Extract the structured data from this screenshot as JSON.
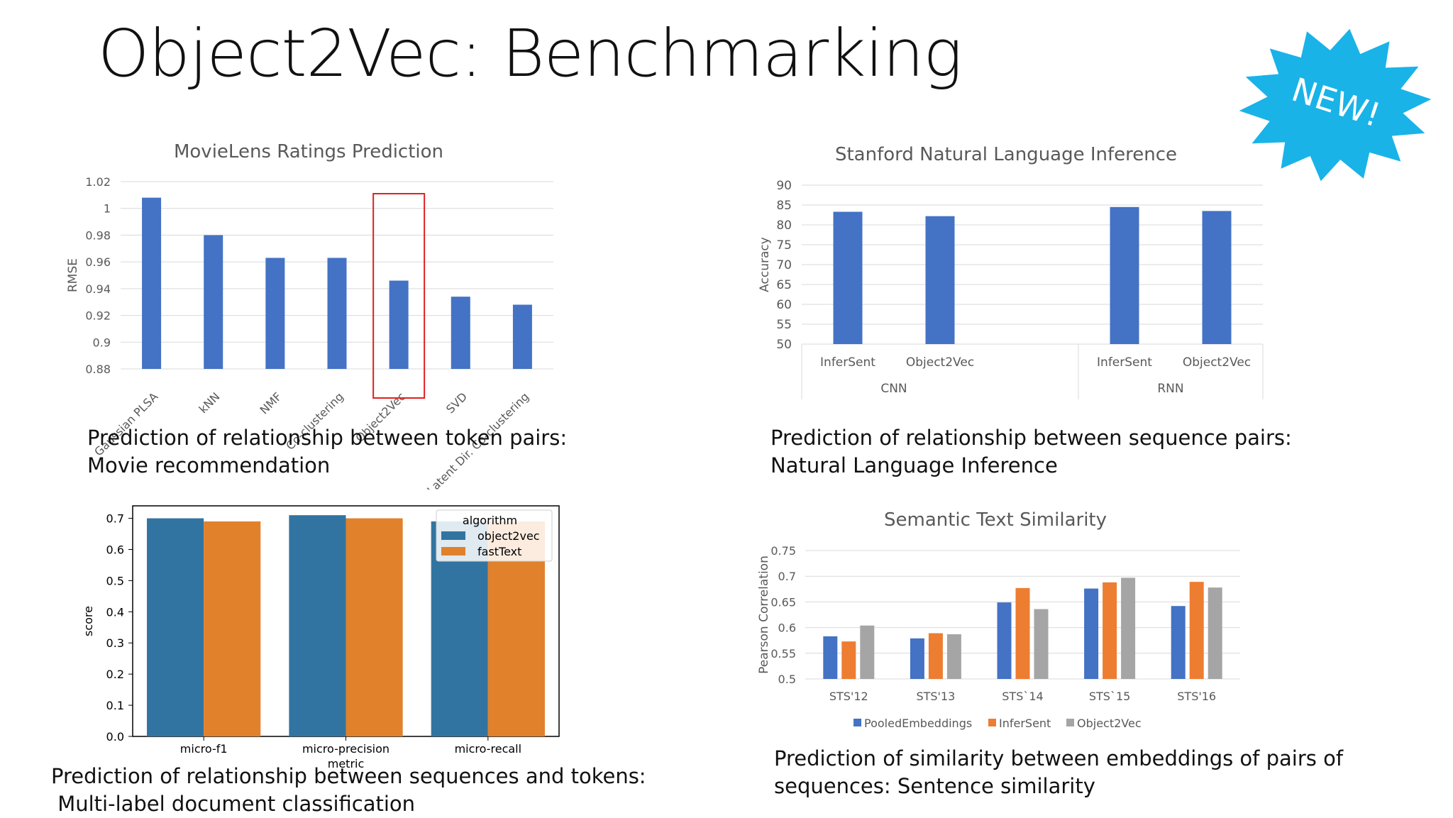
{
  "slide": {
    "title": "Object2Vec: Benchmarking",
    "badge": "NEW!",
    "badge_color": "#19b3e8"
  },
  "captions": {
    "movielens": [
      "Prediction of relationship between token pairs:",
      "Movie recommendation"
    ],
    "snli": [
      "Prediction of relationship between sequence pairs:",
      "Natural Language Inference"
    ],
    "doc": [
      "Prediction of relationship between sequences and tokens:",
      " Multi-label document classification"
    ],
    "sts": [
      "Prediction of similarity between embeddings of pairs of",
      "sequences: Sentence similarity"
    ]
  },
  "chart_data": [
    {
      "type": "bar",
      "title": "MovieLens Ratings Prediction",
      "ylabel": "RMSE",
      "xlabel": "",
      "categories": [
        "Gaussian PLSA",
        "kNN",
        "NMF",
        "Co-clustering",
        "Object2Vec",
        "SVD",
        "Latent Dir. Co-clustering"
      ],
      "values": [
        1.008,
        0.98,
        0.963,
        0.963,
        0.946,
        0.934,
        0.928
      ],
      "ylim": [
        0.88,
        1.02
      ],
      "yticks": [
        "0.88",
        "0.9",
        "0.92",
        "0.94",
        "0.96",
        "0.98",
        "1",
        "1.02"
      ],
      "grid": true,
      "highlight": "Object2Vec",
      "colors": {
        "bar": "#4472c4",
        "highlight_box": "#e02020"
      }
    },
    {
      "type": "bar",
      "title": "Stanford Natural Language Inference",
      "ylabel": "Accuracy",
      "xlabel": "",
      "groups": [
        {
          "name": "CNN",
          "categories": [
            "InferSent",
            "Object2Vec"
          ],
          "values": [
            83.3,
            82.2
          ]
        },
        {
          "name": "RNN",
          "categories": [
            "InferSent",
            "Object2Vec"
          ],
          "values": [
            84.5,
            83.5
          ]
        }
      ],
      "ylim": [
        50,
        90
      ],
      "yticks": [
        "50",
        "55",
        "60",
        "65",
        "70",
        "75",
        "80",
        "85",
        "90"
      ],
      "grid": true,
      "colors": {
        "bar": "#4472c4"
      }
    },
    {
      "type": "bar",
      "title": "",
      "ylabel": "score",
      "xlabel": "metric",
      "categories": [
        "micro-f1",
        "micro-precision",
        "micro-recall"
      ],
      "legend_title": "algorithm",
      "legend_position": "top-right",
      "series": [
        {
          "name": "object2vec",
          "values": [
            0.7,
            0.71,
            0.69
          ],
          "color": "#3274a1"
        },
        {
          "name": "fastText",
          "values": [
            0.69,
            0.7,
            0.69
          ],
          "color": "#e1812c"
        }
      ],
      "ylim": [
        0.0,
        0.74
      ],
      "yticks": [
        "0.0",
        "0.1",
        "0.2",
        "0.3",
        "0.4",
        "0.5",
        "0.6",
        "0.7"
      ],
      "grid": false
    },
    {
      "type": "bar",
      "title": "Semantic Text Similarity",
      "ylabel": "Pearson Correlation",
      "xlabel": "",
      "categories": [
        "STS'12",
        "STS'13",
        "STS`14",
        "STS`15",
        "STS'16"
      ],
      "legend_position": "bottom",
      "series": [
        {
          "name": "PooledEmbeddings",
          "values": [
            0.583,
            0.579,
            0.649,
            0.676,
            0.642
          ],
          "color": "#4472c4"
        },
        {
          "name": "InferSent",
          "values": [
            0.573,
            0.589,
            0.677,
            0.688,
            0.689
          ],
          "color": "#ed7d31"
        },
        {
          "name": "Object2Vec",
          "values": [
            0.604,
            0.587,
            0.636,
            0.697,
            0.678
          ],
          "color": "#a5a5a5"
        }
      ],
      "ylim": [
        0.5,
        0.75
      ],
      "yticks": [
        "0.5",
        "0.55",
        "0.6",
        "0.65",
        "0.7",
        "0.75"
      ],
      "grid": true
    }
  ]
}
